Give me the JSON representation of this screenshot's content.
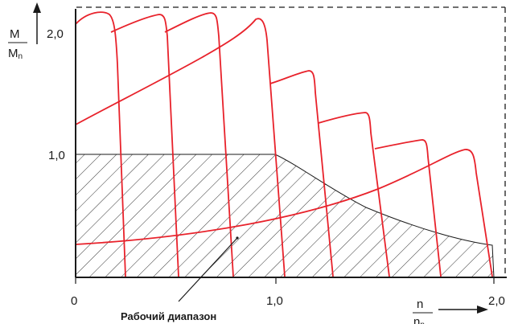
{
  "diagram": {
    "y_axis_label": {
      "numerator": "M",
      "denominator": "M",
      "denominator_subscript": "n"
    },
    "x_axis_label": {
      "numerator": "n",
      "denominator": "n",
      "denominator_subscript": "n"
    },
    "y_ticks": [
      "2,0",
      "1,0"
    ],
    "x_ticks": [
      "0",
      "1,0",
      "2,0"
    ],
    "callout_label": "Рабочий диапазон",
    "colors": {
      "curve": "#e8222b",
      "axis": "#1a1a1a",
      "hatch": "#1a1a1a",
      "frame": "#1a1a1a"
    }
  }
}
